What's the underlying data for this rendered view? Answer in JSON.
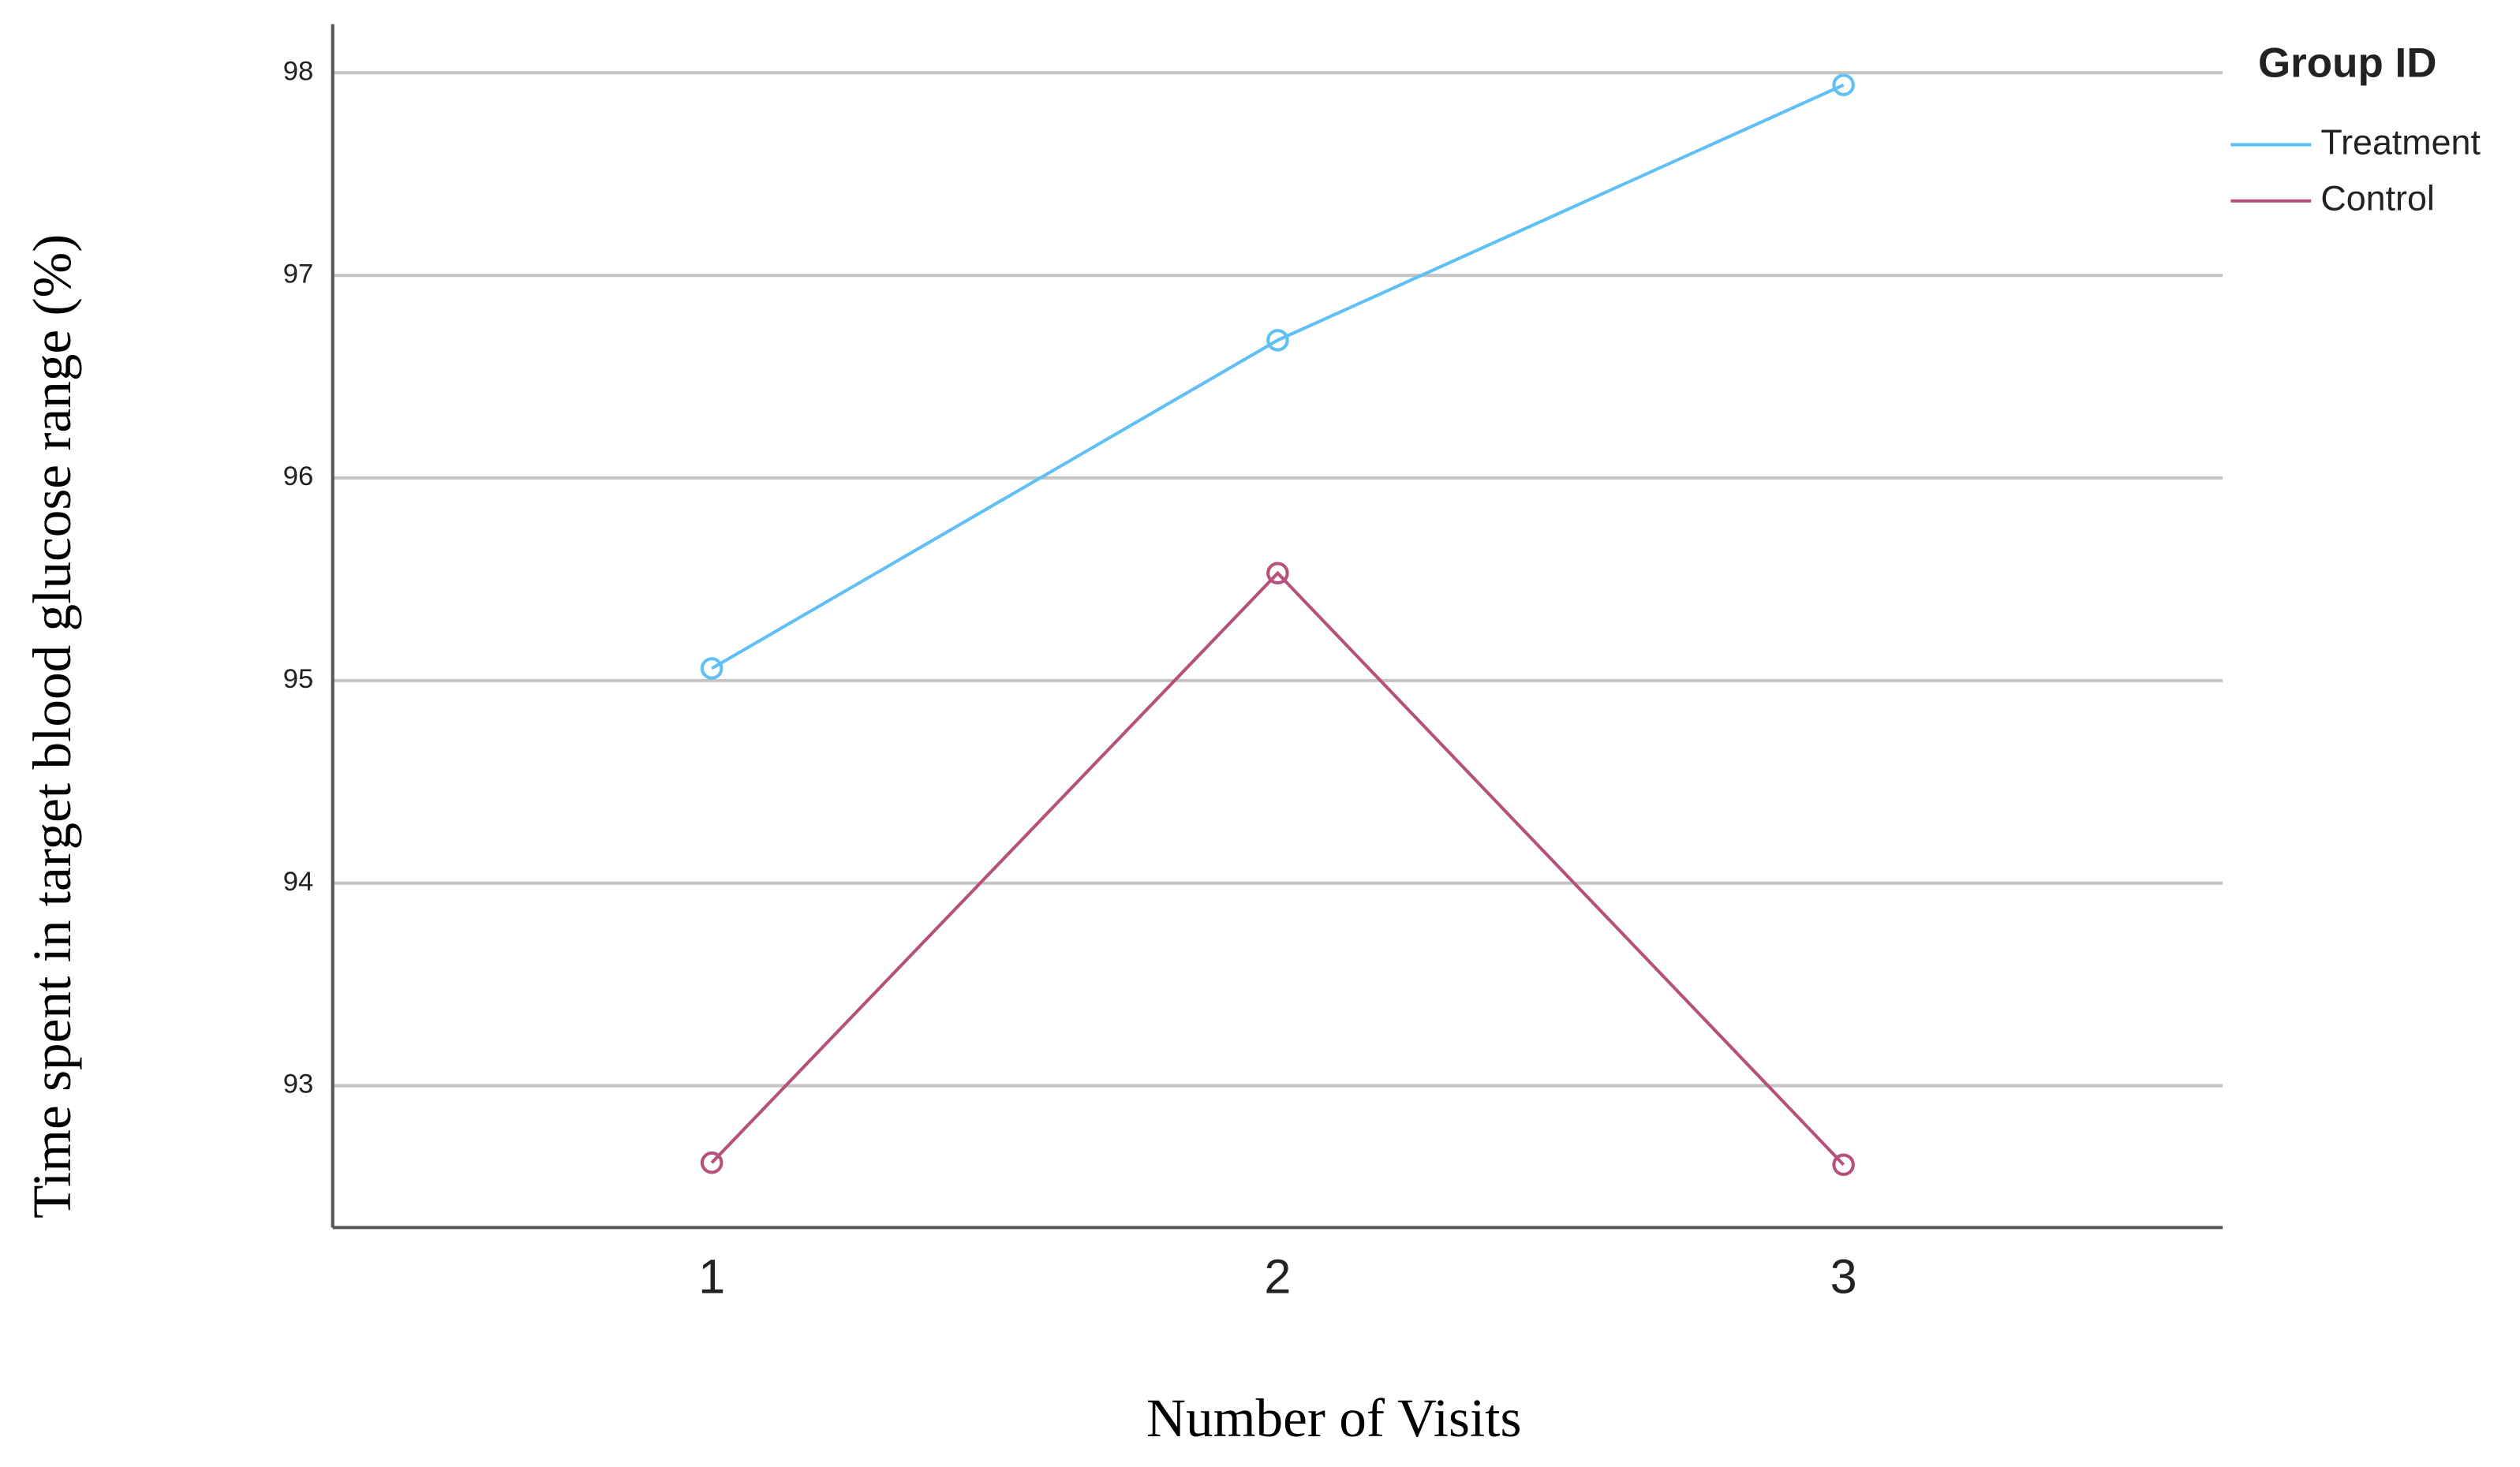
{
  "chart_data": {
    "type": "line",
    "x_label": "Number of Visits",
    "y_label": "Time spent in target blood glucose range (%)",
    "legend_title": "Group ID",
    "legend_position": "top-right",
    "x": [
      1,
      2,
      3
    ],
    "xlim": [
      0.33,
      3.67
    ],
    "xticks": [
      1,
      2,
      3
    ],
    "ylim": [
      92.3,
      98.24
    ],
    "yticks": [
      93,
      94,
      95,
      96,
      97,
      98
    ],
    "grid": true,
    "series": [
      {
        "name": "Treatment",
        "color": "#5ec0f5",
        "values": [
          95.06,
          96.68,
          97.94
        ]
      },
      {
        "name": "Control",
        "color": "#b5517a",
        "values": [
          92.62,
          95.53,
          92.61
        ]
      }
    ]
  }
}
